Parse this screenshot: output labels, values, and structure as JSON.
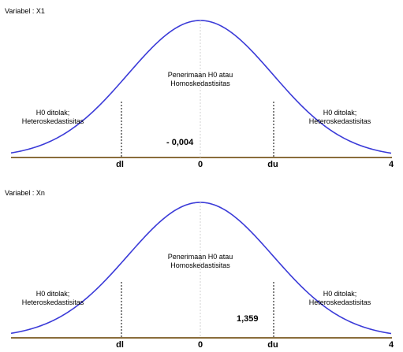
{
  "panels": [
    {
      "title": "Variabel : X1",
      "left_region": [
        "H0 ditolak;",
        "Heteroskedastisitas"
      ],
      "center_region": [
        "Penerimaan H0 atau",
        "Homoskedastisitas"
      ],
      "right_region": [
        "H0 ditolak;",
        "Heteroskedastisitas"
      ],
      "statistic": "- 0,004",
      "axis_labels": {
        "dl": "dl",
        "zero": "0",
        "du": "du",
        "four": "4"
      }
    },
    {
      "title": "Variabel : Xn",
      "left_region": [
        "H0 ditolak;",
        "Heteroskedastisitas"
      ],
      "center_region": [
        "Penerimaan H0 atau",
        "Homoskedastisitas"
      ],
      "right_region": [
        "H0 ditolak;",
        "Heteroskedastisitas"
      ],
      "statistic": "1,359",
      "axis_labels": {
        "dl": "dl",
        "zero": "0",
        "du": "du",
        "four": "4"
      }
    }
  ],
  "colors": {
    "curve": "#3b3bd8",
    "baseline": "#8a6d3b",
    "dashed": "#000000"
  }
}
